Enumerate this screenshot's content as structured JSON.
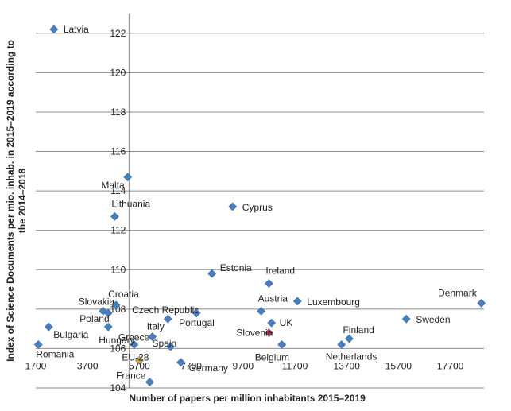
{
  "chart_data": {
    "type": "scatter",
    "xlabel": "Number of papers per million inhabitants 2015–2019",
    "ylabel_line1": "Index of Science Documents per mio. inhab. in 2015–2019 according to",
    "ylabel_line2": "the 2014–2018",
    "xlim": [
      1700,
      19000
    ],
    "ylim": [
      104,
      123
    ],
    "x_ticks": [
      {
        "value": 1700,
        "label": "1700"
      },
      {
        "value": 3700,
        "label": "3700"
      },
      {
        "value": 5700,
        "label": "5700"
      },
      {
        "value": 7700,
        "label": "7700"
      },
      {
        "value": 9700,
        "label": "9700"
      },
      {
        "value": 11700,
        "label": "11700"
      },
      {
        "value": 13700,
        "label": "13700"
      },
      {
        "value": 15700,
        "label": "15700"
      },
      {
        "value": 17700,
        "label": "17700"
      }
    ],
    "y_ticks": [
      {
        "value": 104,
        "label": "104"
      },
      {
        "value": 106,
        "label": "106"
      },
      {
        "value": 108,
        "label": "108"
      },
      {
        "value": 110,
        "label": "110"
      },
      {
        "value": 112,
        "label": "112"
      },
      {
        "value": 114,
        "label": "114"
      },
      {
        "value": 116,
        "label": "116"
      },
      {
        "value": 118,
        "label": "118"
      },
      {
        "value": 120,
        "label": "120"
      },
      {
        "value": 122,
        "label": "122"
      }
    ],
    "y_axis_crosses_x": 5300,
    "x_axis_crosses_y": 104,
    "gridlines": "horizontal",
    "points": [
      {
        "name": "Latvia",
        "x": 2400,
        "y": 122.2
      },
      {
        "name": "Malta",
        "x": 5250,
        "y": 114.7
      },
      {
        "name": "Lithuania",
        "x": 4750,
        "y": 112.7
      },
      {
        "name": "Cyprus",
        "x": 9300,
        "y": 113.2
      },
      {
        "name": "Estonia",
        "x": 8500,
        "y": 109.8
      },
      {
        "name": "Ireland",
        "x": 10700,
        "y": 109.3
      },
      {
        "name": "Croatia",
        "x": 4800,
        "y": 108.2
      },
      {
        "name": "Slovakia",
        "x": 4300,
        "y": 107.9
      },
      {
        "name": "Poland",
        "x": 4500,
        "y": 107.8
      },
      {
        "name": "Bulgaria",
        "x": 2200,
        "y": 107.1
      },
      {
        "name": "Romania",
        "x": 1800,
        "y": 106.2
      },
      {
        "name": "Hungary",
        "x": 4500,
        "y": 107.1
      },
      {
        "name": "Greece",
        "x": 5500,
        "y": 106.2
      },
      {
        "name": "Czech Republic",
        "x": 6800,
        "y": 107.5
      },
      {
        "name": "Italy",
        "x": 6200,
        "y": 106.6
      },
      {
        "name": "Portugal",
        "x": 7900,
        "y": 107.8
      },
      {
        "name": "Spain",
        "x": 6900,
        "y": 106.1
      },
      {
        "name": "EU-28",
        "x": 5700,
        "y": 105.4,
        "highlight": true
      },
      {
        "name": "France",
        "x": 6100,
        "y": 104.3
      },
      {
        "name": "Germany",
        "x": 7300,
        "y": 105.3
      },
      {
        "name": "Austria",
        "x": 10400,
        "y": 107.9
      },
      {
        "name": "UK",
        "x": 10800,
        "y": 107.3
      },
      {
        "name": "Slovenia",
        "x": 10700,
        "y": 106.8,
        "highlight": true
      },
      {
        "name": "Belgium",
        "x": 11200,
        "y": 106.2
      },
      {
        "name": "Luxembourg",
        "x": 11800,
        "y": 108.4
      },
      {
        "name": "Netherlands",
        "x": 13500,
        "y": 106.2
      },
      {
        "name": "Finland",
        "x": 13800,
        "y": 106.5
      },
      {
        "name": "Sweden",
        "x": 16000,
        "y": 107.5
      },
      {
        "name": "Denmark",
        "x": 18900,
        "y": 108.3
      }
    ]
  }
}
